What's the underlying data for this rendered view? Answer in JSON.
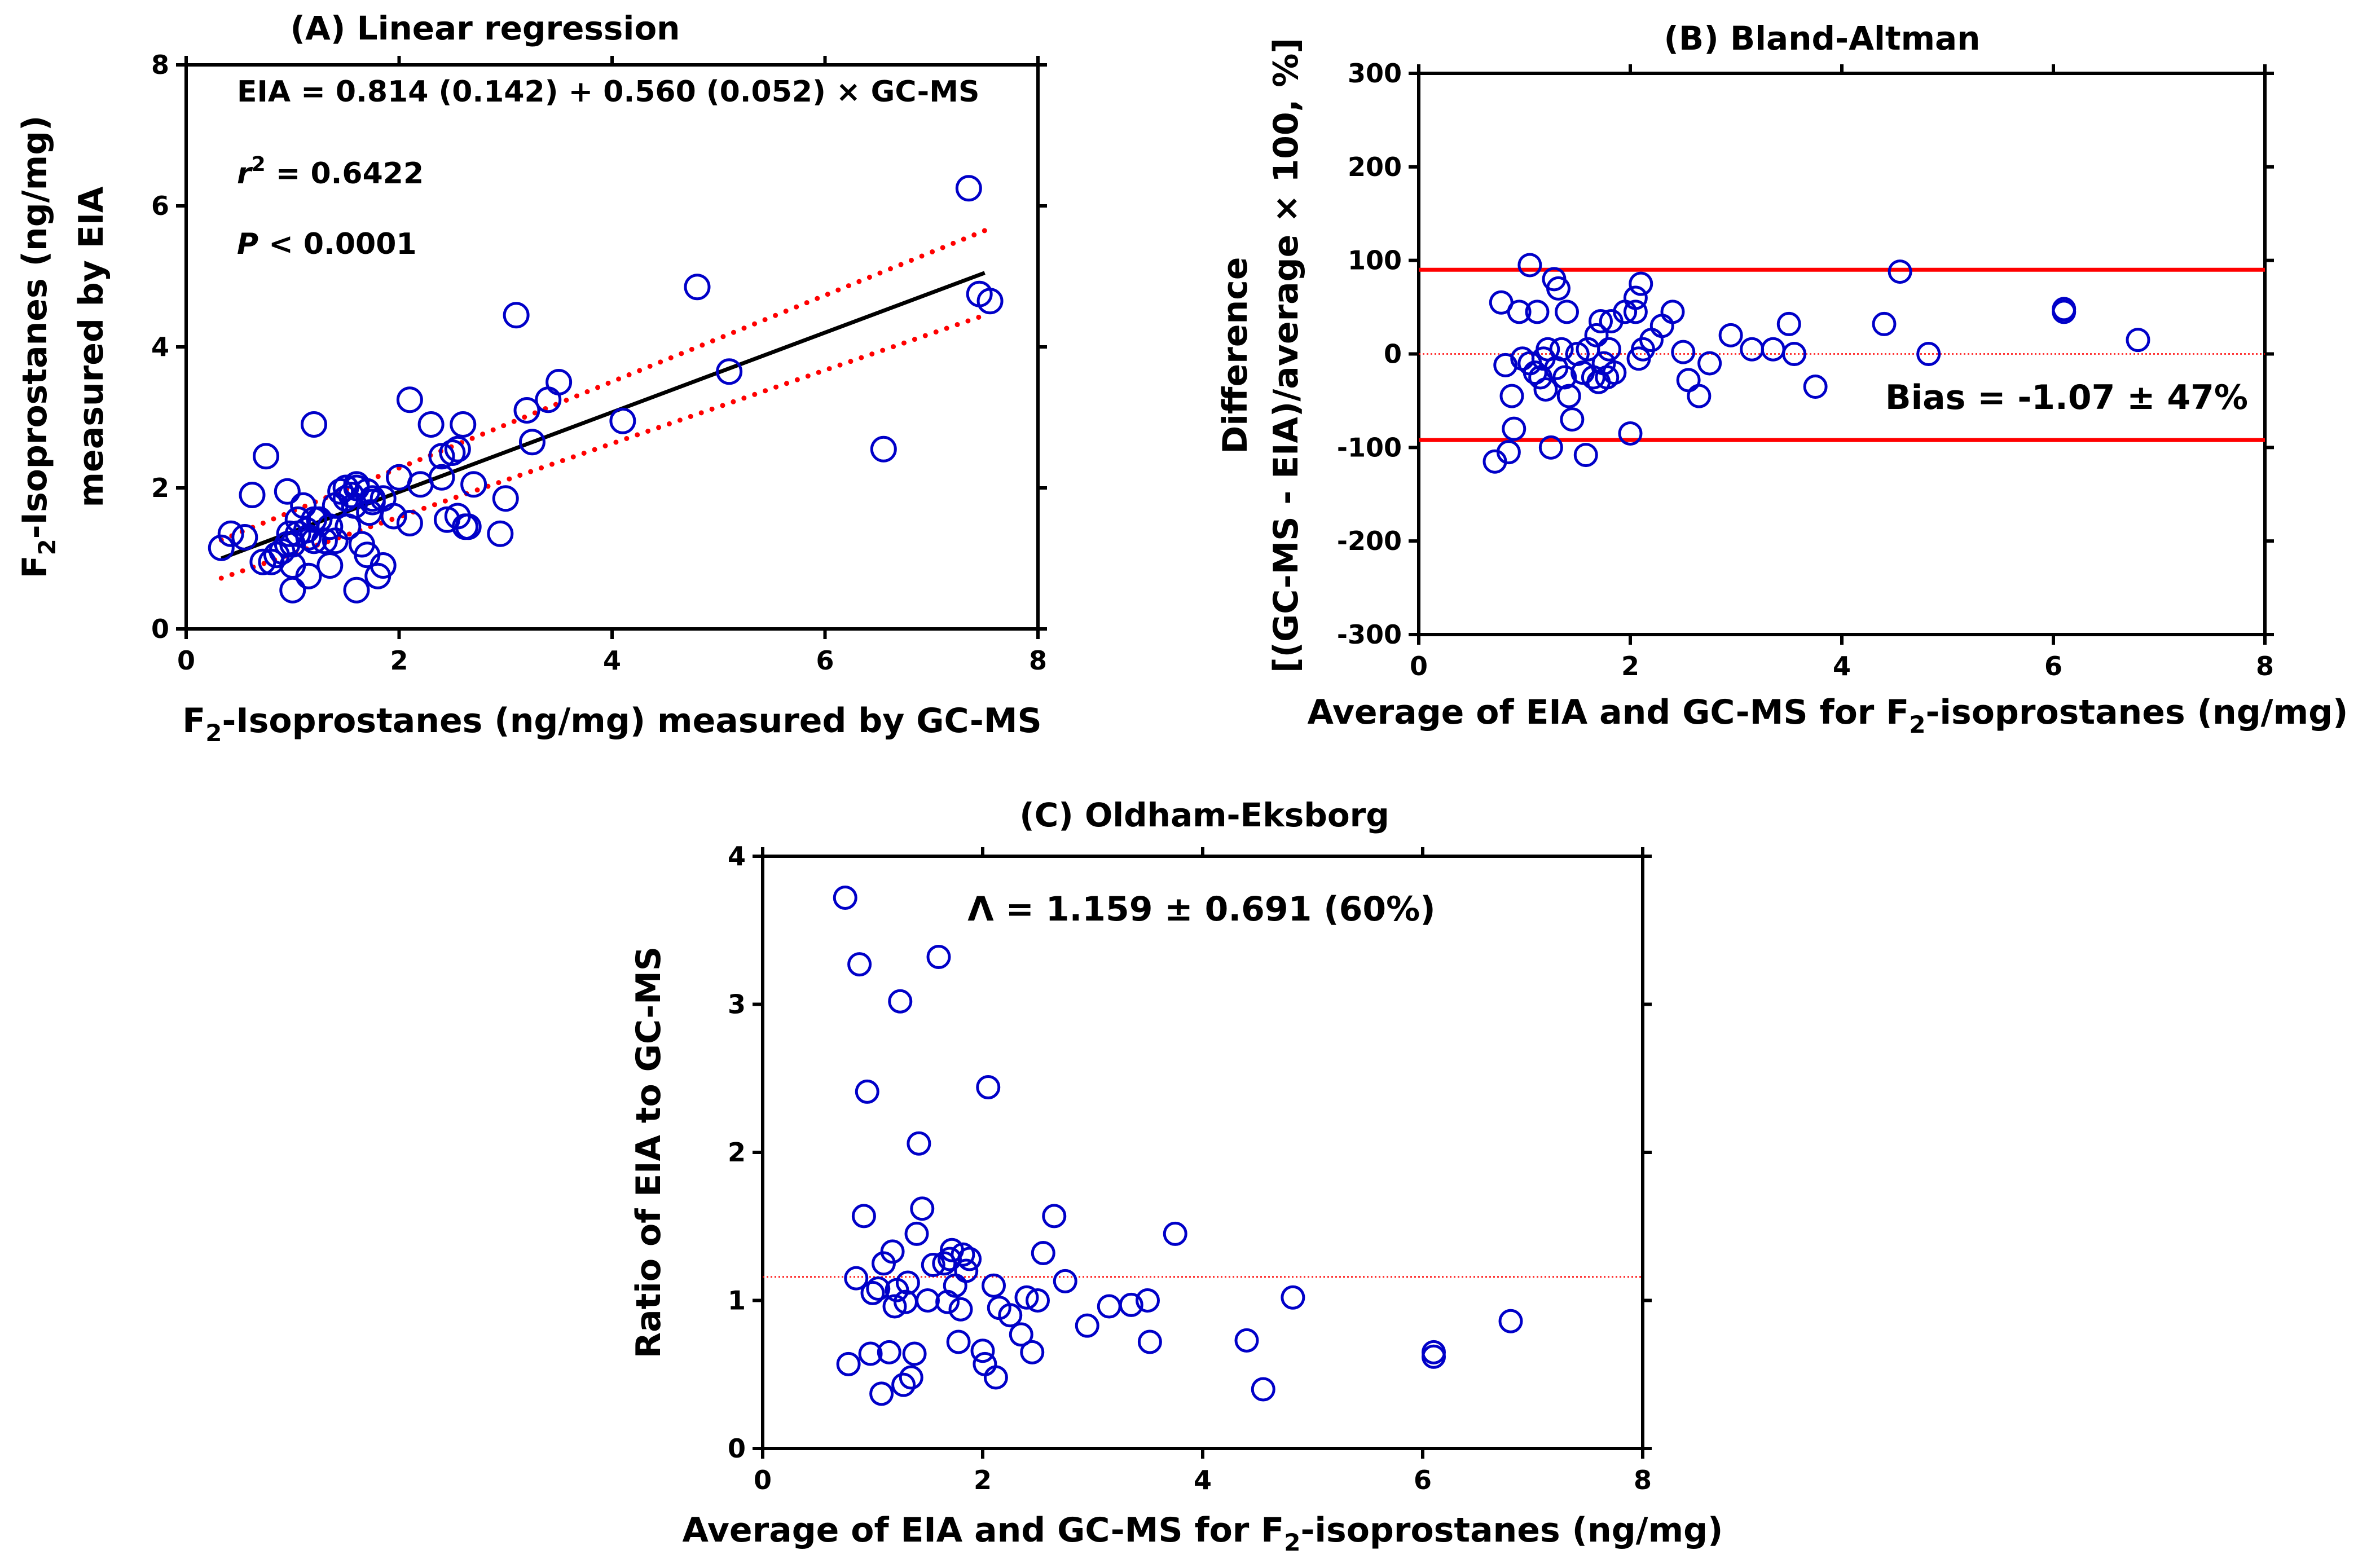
{
  "chart_data": [
    {
      "type": "scatter",
      "panel": "A",
      "title": "(A) Linear regression",
      "xlabel": {
        "pre": "F",
        "sub": "2",
        "post": "-Isoprostanes (ng/mg) measured by GC-MS"
      },
      "ylabel": {
        "line1_pre": "F",
        "line1_sub": "2",
        "line1_post": "-Isoprostanes (ng/mg)",
        "line2": "measured by EIA"
      },
      "xlim": [
        0,
        8
      ],
      "ylim": [
        0,
        8
      ],
      "xticks": [
        "0",
        "2",
        "4",
        "6",
        "8"
      ],
      "yticks": [
        "0",
        "2",
        "4",
        "6",
        "8"
      ],
      "annotations": {
        "equation": "EIA = 0.814 (0.142) + 0.560 (0.052) × GC-MS",
        "r2_label": "r",
        "r2_sup": "2",
        "r2_value": " = 0.6422",
        "p_label": "P",
        "p_value": " < 0.0001"
      },
      "fit_line": {
        "x": [
          0.33,
          7.5
        ],
        "y": [
          1.0,
          5.05
        ],
        "color": "#000000"
      },
      "ci_bands": [
        {
          "x": [
            0.33,
            7.5
          ],
          "y": [
            1.26,
            5.65
          ],
          "color": "#ff0000"
        },
        {
          "x": [
            0.33,
            7.5
          ],
          "y": [
            0.72,
            4.45
          ],
          "color": "#ff0000"
        }
      ],
      "points": {
        "x": [
          0.33,
          0.42,
          0.55,
          0.62,
          0.75,
          0.8,
          0.85,
          0.9,
          0.95,
          1.0,
          1.05,
          1.0,
          1.05,
          1.1,
          1.15,
          1.15,
          1.2,
          1.25,
          1.3,
          1.35,
          1.4,
          1.45,
          1.5,
          1.5,
          1.55,
          1.6,
          1.6,
          1.65,
          1.7,
          1.7,
          1.75,
          1.75,
          1.8,
          1.85,
          1.95,
          2.0,
          2.1,
          2.1,
          2.2,
          2.3,
          2.4,
          2.45,
          2.5,
          2.55,
          2.6,
          2.65,
          2.7,
          2.95,
          3.0,
          3.1,
          3.2,
          3.25,
          3.4,
          3.5,
          4.1,
          4.8,
          5.1,
          6.55,
          7.35,
          7.45,
          7.55,
          0.72,
          0.97,
          1.13,
          1.2,
          1.52,
          1.72,
          1.85,
          2.55,
          1.0,
          1.4,
          1.58,
          2.4,
          2.62,
          0.95,
          1.2,
          1.35,
          1.6
        ],
        "y": [
          1.15,
          1.35,
          1.3,
          1.9,
          2.45,
          0.95,
          1.05,
          1.1,
          1.2,
          0.9,
          1.35,
          0.55,
          1.55,
          1.75,
          1.3,
          0.75,
          2.9,
          1.55,
          1.25,
          0.9,
          1.75,
          1.95,
          2.0,
          1.85,
          1.9,
          0.55,
          2.05,
          1.2,
          1.05,
          1.95,
          1.8,
          1.85,
          0.75,
          0.9,
          1.6,
          2.15,
          3.25,
          1.5,
          2.05,
          2.9,
          2.45,
          1.55,
          2.5,
          1.6,
          2.9,
          1.45,
          2.05,
          1.35,
          1.85,
          4.45,
          3.1,
          2.65,
          3.25,
          3.5,
          2.95,
          4.85,
          3.65,
          2.55,
          6.25,
          4.75,
          4.65,
          0.95,
          1.35,
          1.4,
          1.55,
          1.45,
          1.65,
          1.85,
          2.55,
          1.2,
          1.25,
          1.75,
          2.15,
          1.45,
          1.95,
          1.25,
          1.45,
          2.0
        ]
      }
    },
    {
      "type": "scatter",
      "panel": "B",
      "title": "(B) Bland-Altman",
      "xlabel": {
        "pre": "Average of EIA and GC-MS for F",
        "sub": "2",
        "post": "-isoprostanes (ng/mg)"
      },
      "ylabel": {
        "line1": "Difference",
        "line2": "[(GC-MS - EIA)/average × 100, %]"
      },
      "xlim": [
        0,
        8
      ],
      "ylim": [
        -300,
        300
      ],
      "xticks": [
        "0",
        "2",
        "4",
        "6",
        "8"
      ],
      "yticks": [
        "-300",
        "-200",
        "-100",
        "0",
        "100",
        "200",
        "300"
      ],
      "annotations": {
        "bias": "Bias = -1.07 ± 47%"
      },
      "limits_of_agreement": [
        90,
        -92
      ],
      "limit_color": "#ff0000",
      "bias_line": 0,
      "points": {
        "x": [
          0.72,
          0.78,
          0.82,
          0.85,
          0.88,
          0.9,
          0.95,
          0.98,
          1.05,
          1.05,
          1.1,
          1.12,
          1.15,
          1.18,
          1.2,
          1.22,
          1.25,
          1.28,
          1.3,
          1.32,
          1.35,
          1.38,
          1.4,
          1.42,
          1.45,
          1.5,
          1.55,
          1.58,
          1.6,
          1.65,
          1.68,
          1.7,
          1.72,
          1.75,
          1.78,
          1.8,
          1.82,
          1.85,
          1.95,
          2.0,
          2.05,
          2.05,
          2.08,
          2.1,
          2.12,
          2.2,
          2.3,
          2.4,
          2.5,
          2.55,
          2.65,
          2.75,
          2.95,
          3.15,
          3.35,
          3.5,
          3.55,
          3.75,
          4.4,
          4.55,
          4.82,
          6.1,
          6.1,
          6.8
        ],
        "y": [
          -115,
          55,
          -12,
          -105,
          -45,
          -80,
          45,
          -5,
          95,
          -10,
          -20,
          45,
          -25,
          -5,
          -38,
          5,
          -100,
          80,
          -15,
          70,
          5,
          -25,
          45,
          -45,
          -70,
          0,
          -20,
          -108,
          5,
          -25,
          20,
          -30,
          35,
          -10,
          -25,
          5,
          35,
          -20,
          45,
          -85,
          60,
          45,
          -5,
          75,
          5,
          15,
          30,
          45,
          2,
          -28,
          -45,
          -10,
          20,
          5,
          5,
          32,
          0,
          -35,
          32,
          88,
          0,
          48,
          45,
          15
        ]
      }
    },
    {
      "type": "scatter",
      "panel": "C",
      "title": "(C) Oldham-Eksborg",
      "xlabel": {
        "pre": "Average of EIA and GC-MS for F",
        "sub": "2",
        "post": "-isoprostanes (ng/mg)"
      },
      "ylabel": {
        "line1": "Ratio of EIA to GC-MS"
      },
      "xlim": [
        0,
        8
      ],
      "ylim": [
        0,
        4
      ],
      "xticks": [
        "0",
        "2",
        "4",
        "6",
        "8"
      ],
      "yticks": [
        "0",
        "1",
        "2",
        "3",
        "4"
      ],
      "annotations": {
        "lambda": "Λ = 1.159 ± 0.691 (60%)"
      },
      "reference_line": 1.159,
      "reference_color": "#ff0000",
      "points": {
        "x": [
          0.75,
          0.78,
          0.85,
          0.88,
          0.92,
          0.95,
          0.98,
          1.0,
          1.05,
          1.08,
          1.1,
          1.15,
          1.18,
          1.2,
          1.22,
          1.25,
          1.28,
          1.3,
          1.32,
          1.35,
          1.38,
          1.4,
          1.42,
          1.45,
          1.5,
          1.55,
          1.6,
          1.65,
          1.68,
          1.7,
          1.72,
          1.75,
          1.78,
          1.8,
          1.82,
          1.85,
          1.88,
          2.0,
          2.02,
          2.05,
          2.1,
          2.12,
          2.15,
          2.25,
          2.35,
          2.4,
          2.45,
          2.5,
          2.55,
          2.65,
          2.75,
          2.95,
          3.15,
          3.35,
          3.5,
          3.52,
          3.75,
          4.4,
          4.55,
          4.82,
          6.1,
          6.1,
          6.8
        ],
        "y": [
          3.72,
          0.57,
          1.15,
          3.27,
          1.57,
          2.41,
          0.64,
          1.05,
          1.08,
          0.37,
          1.25,
          0.65,
          1.33,
          0.96,
          1.07,
          3.02,
          0.43,
          0.99,
          1.12,
          0.48,
          0.64,
          1.45,
          2.06,
          1.62,
          1.0,
          1.24,
          3.32,
          1.25,
          0.99,
          1.28,
          1.34,
          1.1,
          0.72,
          0.94,
          1.31,
          1.2,
          1.28,
          0.66,
          0.57,
          2.44,
          1.1,
          0.48,
          0.95,
          0.9,
          0.77,
          1.02,
          0.65,
          1.0,
          1.32,
          1.57,
          1.13,
          0.83,
          0.96,
          0.97,
          1.0,
          0.72,
          1.45,
          0.73,
          0.4,
          1.02,
          0.65,
          0.62,
          0.86
        ]
      }
    }
  ]
}
